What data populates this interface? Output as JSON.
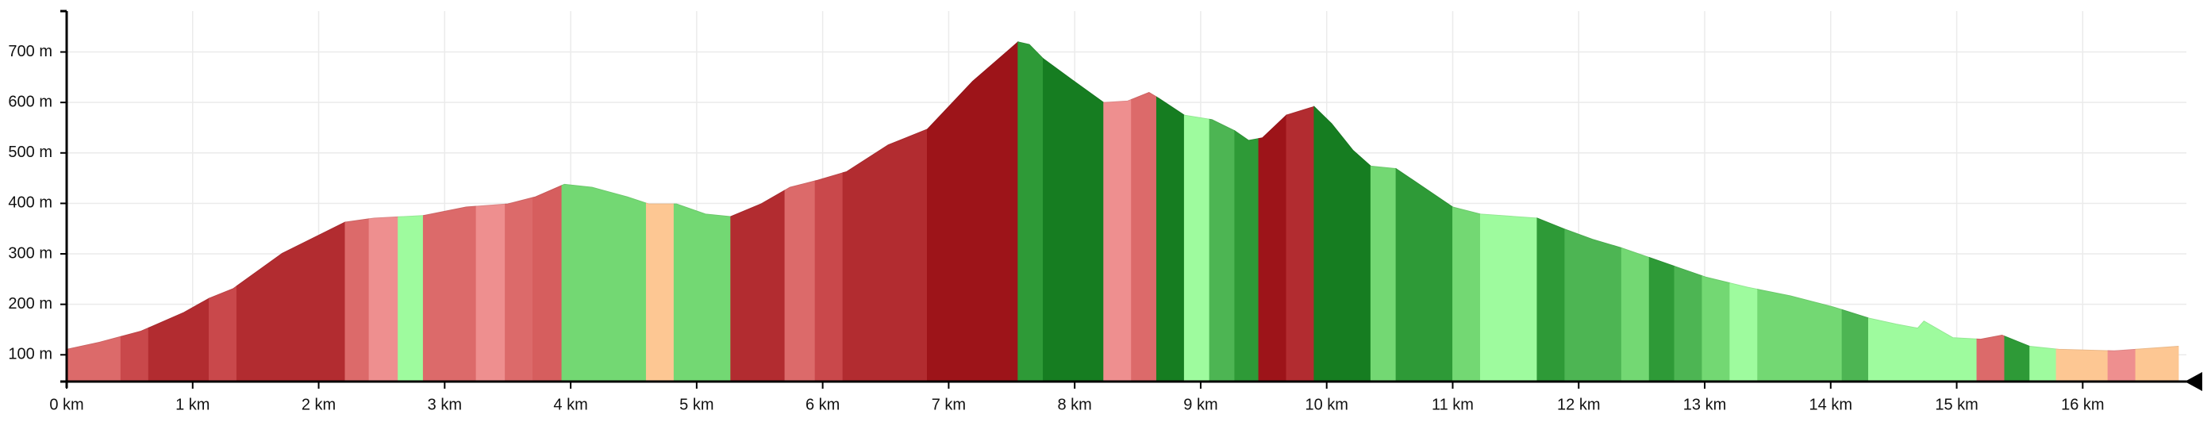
{
  "chart_data": {
    "type": "area",
    "x": [
      0,
      0.26,
      0.59,
      0.93,
      1.13,
      1.32,
      1.71,
      2.21,
      2.44,
      2.83,
      3.17,
      3.5,
      3.72,
      3.95,
      4.17,
      4.45,
      4.62,
      4.84,
      5.07,
      5.27,
      5.51,
      5.74,
      5.96,
      6.19,
      6.52,
      6.83,
      7.19,
      7.55,
      7.64,
      7.75,
      7.98,
      8.23,
      8.42,
      8.59,
      8.67,
      8.87,
      9.09,
      9.27,
      9.38,
      9.49,
      9.68,
      9.9,
      10.04,
      10.21,
      10.35,
      10.55,
      10.77,
      11.0,
      11.22,
      11.67,
      11.89,
      12.11,
      12.34,
      12.56,
      12.79,
      13.01,
      13.34,
      13.68,
      14.02,
      14.3,
      14.52,
      14.69,
      14.74,
      14.97,
      15.19,
      15.36,
      15.58,
      15.81,
      16.25,
      16.76
    ],
    "values": [
      111,
      125,
      147,
      184,
      212,
      231,
      301,
      363,
      371,
      376,
      393,
      399,
      413,
      438,
      432,
      413,
      399,
      399,
      379,
      374,
      399,
      432,
      446,
      463,
      516,
      547,
      642,
      720,
      715,
      687,
      645,
      600,
      603,
      620,
      608,
      575,
      566,
      544,
      525,
      530,
      575,
      592,
      558,
      505,
      474,
      469,
      432,
      393,
      379,
      371,
      349,
      329,
      312,
      293,
      273,
      254,
      234,
      217,
      195,
      173,
      161,
      153,
      167,
      134,
      131,
      139,
      117,
      111,
      108,
      117
    ],
    "segments": {
      "bounds": [
        0,
        0.43,
        0.65,
        1.13,
        1.35,
        2.21,
        2.4,
        2.63,
        2.83,
        3.25,
        3.48,
        3.7,
        3.93,
        4.6,
        4.82,
        5.27,
        5.7,
        5.94,
        6.16,
        6.83,
        7.55,
        7.75,
        8.23,
        8.45,
        8.65,
        8.87,
        9.07,
        9.27,
        9.46,
        9.68,
        9.9,
        10.35,
        10.55,
        11.0,
        11.22,
        11.67,
        11.89,
        12.34,
        12.56,
        12.76,
        12.98,
        13.2,
        13.42,
        14.09,
        14.3,
        14.93,
        15.16,
        15.38,
        15.58,
        15.79,
        16.2,
        16.42,
        16.76
      ],
      "colors": [
        "#dc6a6a",
        "#c9484b",
        "#b22c30",
        "#c9484b",
        "#b22c30",
        "#dc6a6a",
        "#ee8f8f",
        "#9efb9e",
        "#dc6a6a",
        "#ee8f8f",
        "#dc6a6a",
        "#d65e5e",
        "#73d873",
        "#fdc793",
        "#73d873",
        "#b22c30",
        "#dc6a6a",
        "#c9484b",
        "#b22c30",
        "#9d1419",
        "#2e9a37",
        "#167d21",
        "#ee8f8f",
        "#dc6a6a",
        "#167d21",
        "#9efb9e",
        "#4db553",
        "#2e9a37",
        "#9d1419",
        "#b22c30",
        "#167d21",
        "#73d873",
        "#2e9a37",
        "#73d873",
        "#9efb9e",
        "#2e9a37",
        "#4db553",
        "#73d873",
        "#2e9a37",
        "#4db553",
        "#73d873",
        "#9efb9e",
        "#73d873",
        "#4db553",
        "#9efb9e",
        "#9efb9e",
        "#dc6a6a",
        "#2e9a37",
        "#9efb9e",
        "#fdc793",
        "#ee8f8f",
        "#fdc793"
      ]
    },
    "xlim": [
      0,
      16.76
    ],
    "ylim": [
      47,
      781
    ],
    "xticks": [
      {
        "value": 0,
        "label": "0 km"
      },
      {
        "value": 1,
        "label": "1 km"
      },
      {
        "value": 2,
        "label": "2 km"
      },
      {
        "value": 3,
        "label": "3 km"
      },
      {
        "value": 4,
        "label": "4 km"
      },
      {
        "value": 5,
        "label": "5 km"
      },
      {
        "value": 6,
        "label": "6 km"
      },
      {
        "value": 7,
        "label": "7 km"
      },
      {
        "value": 8,
        "label": "8 km"
      },
      {
        "value": 9,
        "label": "9 km"
      },
      {
        "value": 10,
        "label": "10 km"
      },
      {
        "value": 11,
        "label": "11 km"
      },
      {
        "value": 12,
        "label": "12 km"
      },
      {
        "value": 13,
        "label": "13 km"
      },
      {
        "value": 14,
        "label": "14 km"
      },
      {
        "value": 15,
        "label": "15 km"
      },
      {
        "value": 16,
        "label": "16 km"
      }
    ],
    "yticks": [
      {
        "value": 100,
        "label": "100 m"
      },
      {
        "value": 200,
        "label": "200 m"
      },
      {
        "value": 300,
        "label": "300 m"
      },
      {
        "value": 400,
        "label": "400 m"
      },
      {
        "value": 500,
        "label": "500 m"
      },
      {
        "value": 600,
        "label": "600 m"
      },
      {
        "value": 700,
        "label": "700 m"
      }
    ],
    "grid": true
  }
}
